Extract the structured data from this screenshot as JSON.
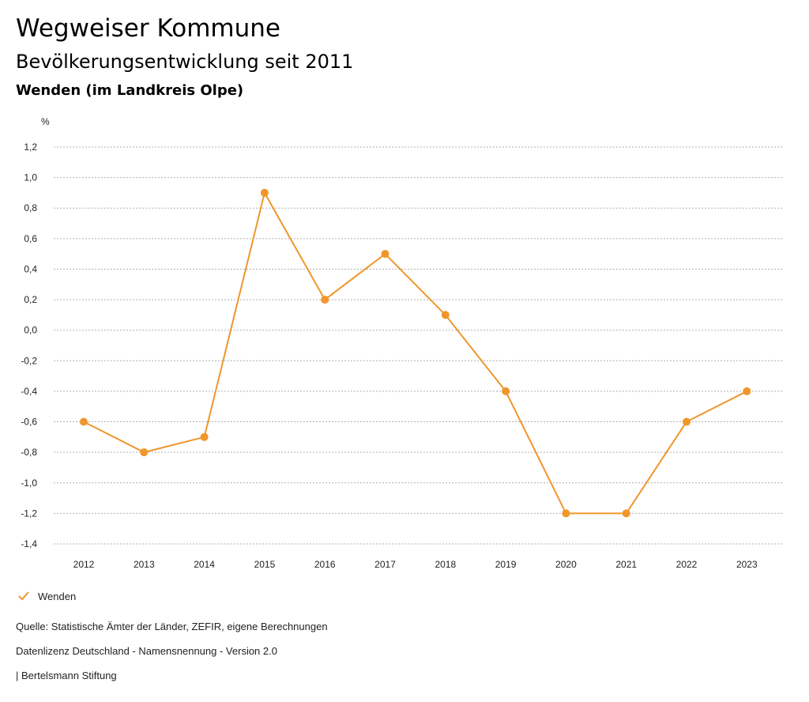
{
  "header": {
    "title": "Wegweiser Kommune",
    "subtitle": "Bevölkerungsentwicklung seit 2011",
    "region": "Wenden (im Landkreis Olpe)"
  },
  "legend": {
    "label": "Wenden"
  },
  "footer": {
    "source": "Quelle: Statistische Ämter der Länder, ZEFIR, eigene Berechnungen",
    "license": "Datenlizenz Deutschland - Namensnennung - Version 2.0",
    "publisher": "| Bertelsmann Stiftung"
  },
  "colors": {
    "series": "#f0962b",
    "grid": "#b0b0b0"
  },
  "chart_data": {
    "type": "line",
    "title": "Bevölkerungsentwicklung seit 2011",
    "xlabel": "",
    "ylabel": "%",
    "categories": [
      "2012",
      "2013",
      "2014",
      "2015",
      "2016",
      "2017",
      "2018",
      "2019",
      "2020",
      "2021",
      "2022",
      "2023"
    ],
    "series": [
      {
        "name": "Wenden",
        "values": [
          -0.6,
          -0.8,
          -0.7,
          0.9,
          0.2,
          0.5,
          0.1,
          -0.4,
          -1.2,
          -1.2,
          -0.6,
          -0.4
        ]
      }
    ],
    "ylim": [
      -1.4,
      1.2
    ],
    "yticks": [
      1.2,
      1.0,
      0.8,
      0.6,
      0.4,
      0.2,
      0.0,
      -0.2,
      -0.4,
      -0.6,
      -0.8,
      -1.0,
      -1.2,
      -1.4
    ],
    "ytick_labels": [
      "1,2",
      "1,0",
      "0,8",
      "0,6",
      "0,4",
      "0,2",
      "0,0",
      "-0,2",
      "-0,4",
      "-0,6",
      "-0,8",
      "-1,0",
      "-1,2",
      "-1,4"
    ],
    "grid": true,
    "legend_position": "bottom-left"
  }
}
